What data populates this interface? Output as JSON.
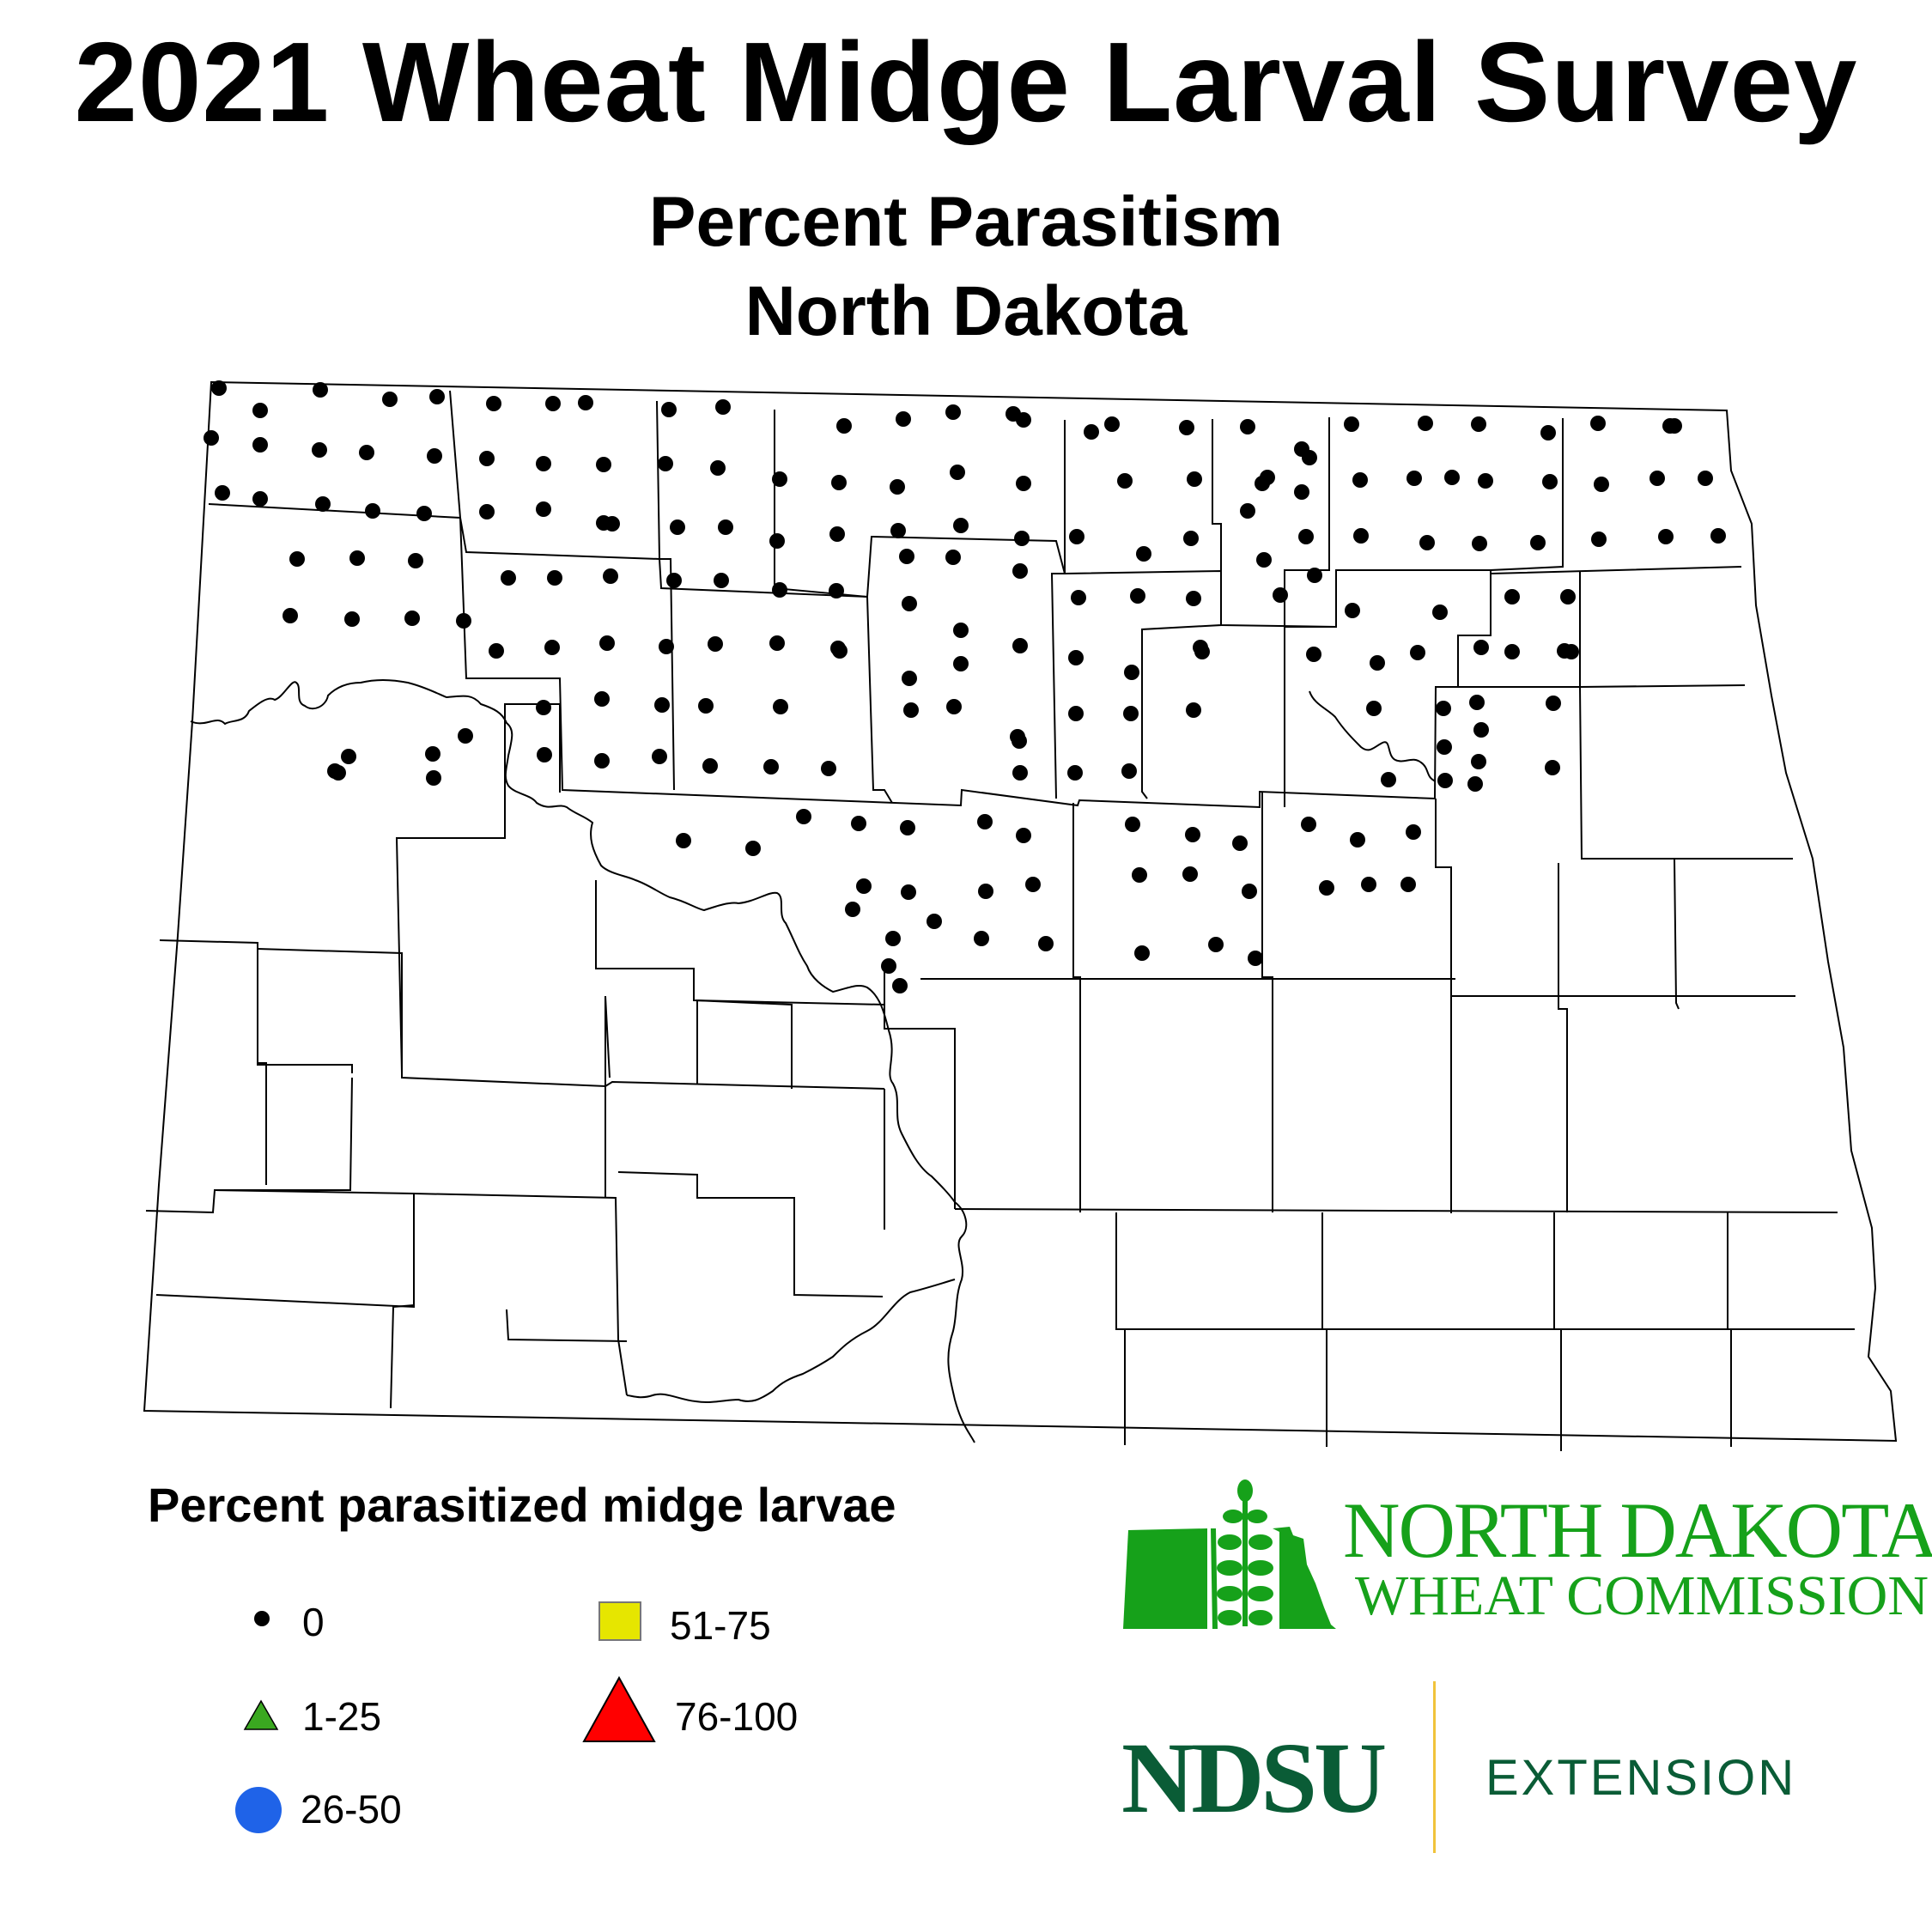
{
  "header": {
    "title": "2021 Wheat Midge Larval Survey",
    "subtitle": "Percent Parasitism",
    "region": "North Dakota"
  },
  "legend": {
    "title": "Percent parasitized midge larvae",
    "items": [
      {
        "label": "0",
        "symbol": "circle",
        "color": "#000000"
      },
      {
        "label": "1-25",
        "symbol": "triangle",
        "color": "#3aa820"
      },
      {
        "label": "26-50",
        "symbol": "circle",
        "color": "#1f63e8"
      },
      {
        "label": "51-75",
        "symbol": "square",
        "color": "#e6e600"
      },
      {
        "label": "76-100",
        "symbol": "triangle",
        "color": "#ff0000"
      }
    ]
  },
  "logos": {
    "ndwc_line1": "NORTH DAKOTA",
    "ndwc_line2": "WHEAT COMMISSION",
    "ndsu": "NDSU",
    "extension": "EXTENSION"
  },
  "colors": {
    "ndwc_green": "#16a11a",
    "ndsu_green": "#0a5c36",
    "divider_gold": "#f1c33b"
  },
  "map": {
    "survey_points_category": "0",
    "survey_point_count": 170
  }
}
